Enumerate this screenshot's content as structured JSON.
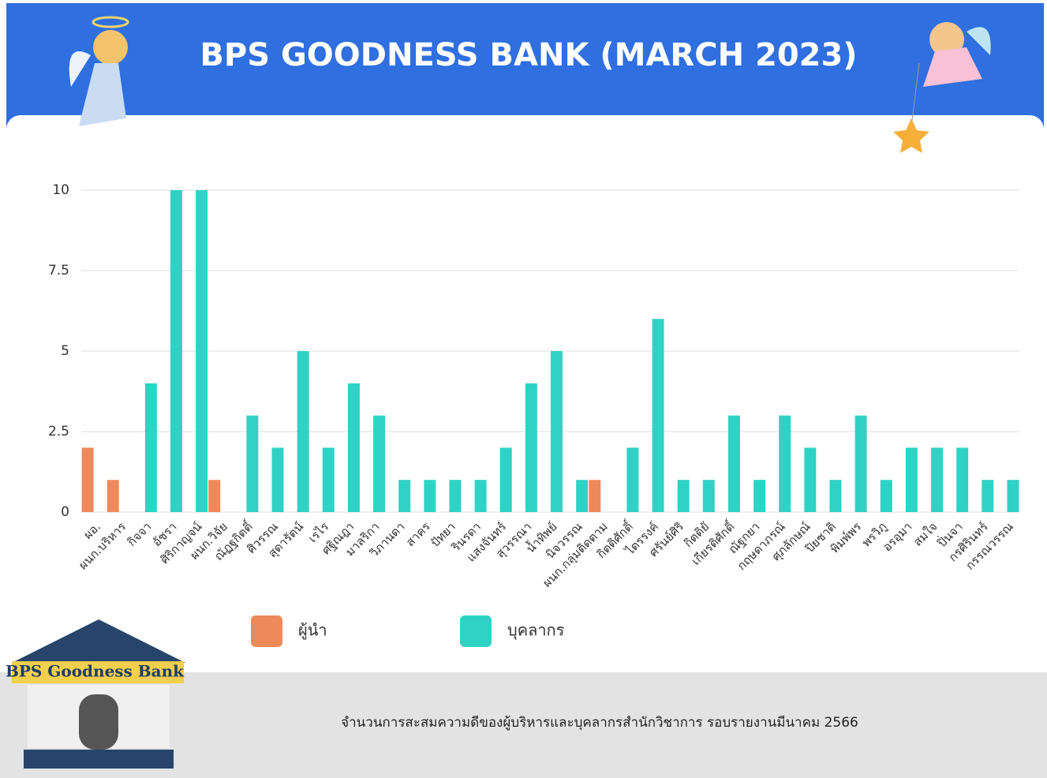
{
  "chart_data": {
    "type": "bar",
    "title": "BPS GOODNESS BANK (MARCH  2023)",
    "categories": [
      "ผอ.",
      "ผนก.บริหาร",
      "กิจจา",
      "อัชรา",
      "ศิริกาญจน์",
      "ผนก.วิจัย",
      "ณัฏฐกิตติ์",
      "ศิวรรณ",
      "สุดารัตน์",
      "เรไร",
      "ศฐิณฎา",
      "มาลริกา",
      "วิภานดา",
      "สาคร",
      "ปัทยา",
      "รินรดา",
      "แสงจันทร์",
      "สุวรรณา",
      "น้ำทิพย์",
      "นิจวรรณ",
      "ผนก.กลุ่มติดตาม",
      "กิตติศักดิ์",
      "ไตรรงค์",
      "ศรันย์ศิริ",
      "กิตติยั",
      "เกียรติศักดิ์",
      "ณัฐกยา",
      "กฤษดาภรณ์",
      "ศุภลักษณ์",
      "ปิยชาติ",
      "พิมพ์พร",
      "พรวิภู",
      "อรอุมา",
      "สมใจ",
      "ปิ่นจา",
      "กรศิรินทร์",
      "กรรณวรรณ"
    ],
    "series": [
      {
        "name": "ผู้นำ",
        "color": "#ee8a5a",
        "values": [
          2,
          1,
          null,
          null,
          null,
          1,
          null,
          null,
          null,
          null,
          null,
          null,
          null,
          null,
          null,
          null,
          null,
          null,
          null,
          null,
          1,
          null,
          null,
          null,
          null,
          null,
          null,
          null,
          null,
          null,
          null,
          null,
          null,
          null,
          null,
          null,
          null
        ]
      },
      {
        "name": "บุคลากร",
        "color": "#2ed3c5",
        "values": [
          null,
          null,
          4,
          10,
          10,
          null,
          3,
          2,
          5,
          2,
          4,
          3,
          1,
          1,
          1,
          1,
          2,
          4,
          5,
          1,
          null,
          2,
          6,
          1,
          1,
          3,
          1,
          3,
          2,
          1,
          3,
          1,
          2,
          2,
          2,
          1,
          1
        ]
      }
    ],
    "ylim": [
      0,
      10
    ],
    "yticks": [
      0,
      2.5,
      5,
      7.5,
      10
    ],
    "grid": true,
    "legend": "bottom"
  },
  "logo_text": "BPS Goodness Bank",
  "caption": "จำนวนการสะสมความดีของผู้บริหารและบุคลากรสำนักวิชาการ รอบรายงานมีนาคม 2566"
}
